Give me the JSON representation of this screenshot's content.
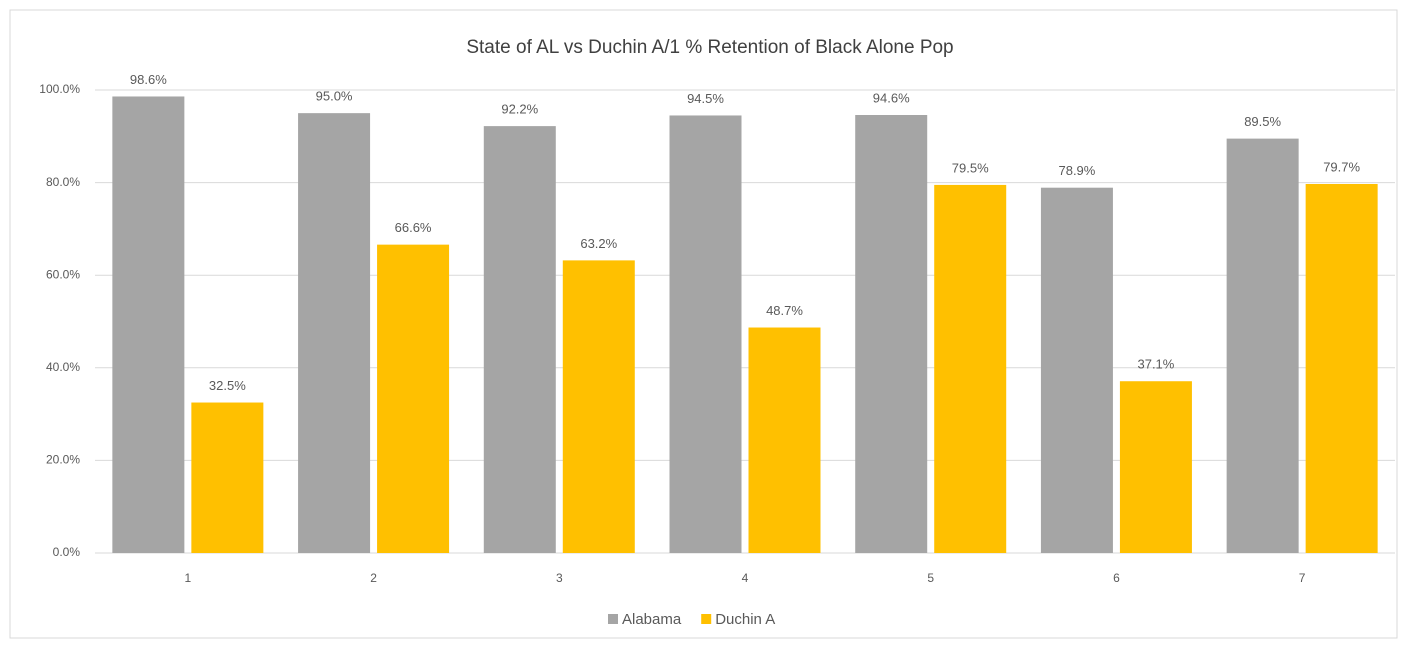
{
  "chart_data": {
    "type": "bar",
    "title": "State of AL  vs Duchin A/1 % Retention of Black Alone Pop",
    "categories": [
      "1",
      "2",
      "3",
      "4",
      "5",
      "6",
      "7"
    ],
    "series": [
      {
        "name": "Alabama",
        "color": "#a5a5a5",
        "values": [
          98.6,
          95.0,
          92.2,
          94.5,
          94.6,
          78.9,
          89.5
        ],
        "value_labels": [
          "98.6%",
          "95.0%",
          "92.2%",
          "94.5%",
          "94.6%",
          "78.9%",
          "89.5%"
        ]
      },
      {
        "name": "Duchin A",
        "color": "#ffc000",
        "values": [
          32.5,
          66.6,
          63.2,
          48.7,
          79.5,
          37.1,
          79.7
        ],
        "value_labels": [
          "32.5%",
          "66.6%",
          "63.2%",
          "48.7%",
          "79.5%",
          "37.1%",
          "79.7%"
        ]
      }
    ],
    "ylim": [
      0,
      100
    ],
    "yticks": [
      {
        "value": 0,
        "label": "0.0%"
      },
      {
        "value": 20,
        "label": "20.0%"
      },
      {
        "value": 40,
        "label": "40.0%"
      },
      {
        "value": 60,
        "label": "60.0%"
      },
      {
        "value": 80,
        "label": "80.0%"
      },
      {
        "value": 100,
        "label": "100.0%"
      }
    ],
    "grid": true,
    "legend": "bottom"
  }
}
